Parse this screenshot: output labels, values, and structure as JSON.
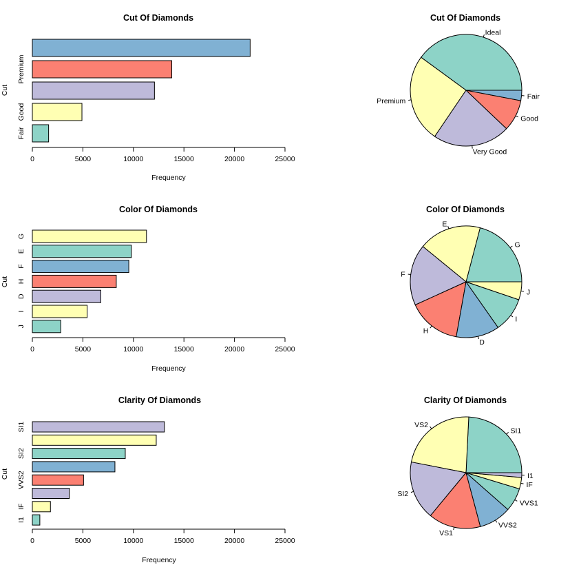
{
  "figure": {
    "background": "#ffffff"
  },
  "chart_data": [
    {
      "type": "bar",
      "orientation": "horizontal",
      "title": "Cut Of Diamonds",
      "xlabel": "Frequency",
      "ylabel": "Cut",
      "xlim": [
        0,
        25000
      ],
      "xticks": [
        0,
        5000,
        10000,
        15000,
        20000,
        25000
      ],
      "categories": [
        "Fair",
        "Good",
        "Very Good",
        "Premium",
        "Ideal"
      ],
      "shown_tick_labels": [
        "Fair",
        "Good",
        "",
        "Premium",
        ""
      ],
      "values": [
        1610,
        4906,
        12082,
        13791,
        21551
      ],
      "colors": [
        "#8DD3C7",
        "#FFFFB3",
        "#BEBADA",
        "#FB8072",
        "#80B1D3"
      ]
    },
    {
      "type": "pie",
      "title": "Cut Of Diamonds",
      "labels": [
        "Ideal",
        "Premium",
        "Very Good",
        "Good",
        "Fair"
      ],
      "values": [
        21551,
        13791,
        12082,
        4906,
        1610
      ],
      "colors": [
        "#8DD3C7",
        "#FFFFB3",
        "#BEBADA",
        "#FB8072",
        "#80B1D3"
      ]
    },
    {
      "type": "bar",
      "orientation": "horizontal",
      "title": "Color Of Diamonds",
      "xlabel": "Frequency",
      "ylabel": "Cut",
      "xlim": [
        0,
        25000
      ],
      "xticks": [
        0,
        5000,
        10000,
        15000,
        20000,
        25000
      ],
      "categories": [
        "J",
        "I",
        "D",
        "H",
        "F",
        "E",
        "G"
      ],
      "shown_tick_labels": [
        "J",
        "I",
        "D",
        "H",
        "F",
        "E",
        "G"
      ],
      "values": [
        2808,
        5422,
        6775,
        8304,
        9542,
        9797,
        11292
      ],
      "colors": [
        "#8DD3C7",
        "#FFFFB3",
        "#BEBADA",
        "#FB8072",
        "#80B1D3",
        "#8DD3C7",
        "#FFFFB3"
      ]
    },
    {
      "type": "pie",
      "title": "Color Of Diamonds",
      "labels": [
        "G",
        "E",
        "F",
        "H",
        "D",
        "I",
        "J"
      ],
      "values": [
        11292,
        9797,
        9542,
        8304,
        6775,
        5422,
        2808
      ],
      "colors": [
        "#8DD3C7",
        "#FFFFB3",
        "#BEBADA",
        "#FB8072",
        "#80B1D3",
        "#8DD3C7",
        "#FFFFB3"
      ]
    },
    {
      "type": "bar",
      "orientation": "horizontal",
      "title": "Clarity Of Diamonds",
      "xlabel": "Frequency",
      "ylabel": "Cut",
      "xlim": [
        0,
        25000
      ],
      "xticks": [
        0,
        5000,
        10000,
        15000,
        20000,
        25000
      ],
      "categories": [
        "I1",
        "IF",
        "VVS1",
        "VVS2",
        "VS1",
        "SI2",
        "VS2",
        "SI1"
      ],
      "shown_tick_labels": [
        "I1",
        "IF",
        "",
        "VVS2",
        "",
        "SI2",
        "",
        "SI1"
      ],
      "values": [
        741,
        1790,
        3655,
        5066,
        8171,
        9194,
        12258,
        13065
      ],
      "colors": [
        "#8DD3C7",
        "#FFFFB3",
        "#BEBADA",
        "#FB8072",
        "#80B1D3",
        "#8DD3C7",
        "#FFFFB3",
        "#BEBADA"
      ]
    },
    {
      "type": "pie",
      "title": "Clarity Of Diamonds",
      "labels": [
        "SI1",
        "VS2",
        "SI2",
        "VS1",
        "VVS2",
        "VVS1",
        "IF",
        "I1"
      ],
      "values": [
        13065,
        12258,
        9194,
        8171,
        5066,
        3655,
        1790,
        741
      ],
      "colors": [
        "#8DD3C7",
        "#FFFFB3",
        "#BEBADA",
        "#FB8072",
        "#80B1D3",
        "#8DD3C7",
        "#FFFFB3",
        "#BEBADA"
      ]
    }
  ]
}
